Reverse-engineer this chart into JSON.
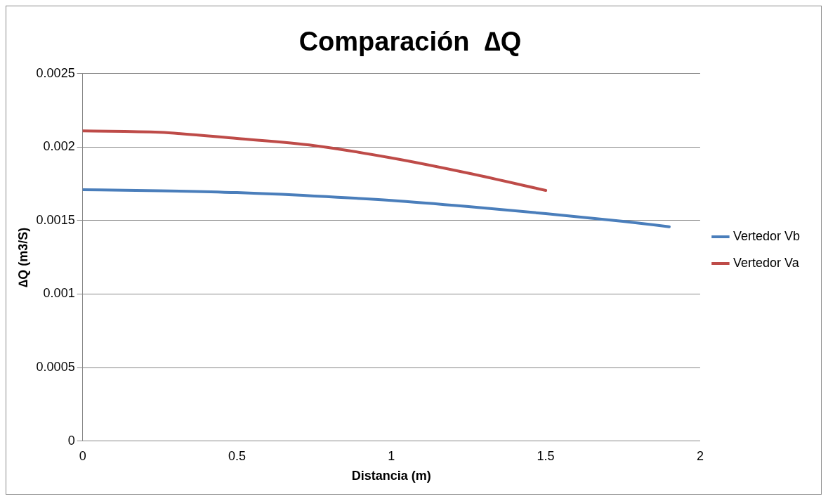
{
  "chart_data": {
    "type": "line",
    "title": "Comparación  ∆Q",
    "xlabel": "Distancia (m)",
    "ylabel": "∆Q (m3/S)",
    "xlim": [
      0,
      2
    ],
    "xticks": [
      0,
      0.5,
      1,
      1.5,
      2
    ],
    "ylim": [
      0,
      0.0025
    ],
    "yticks": [
      0,
      0.0005,
      0.001,
      0.0015,
      0.002,
      0.0025
    ],
    "grid": "y",
    "legend": "right",
    "marker": "none",
    "line_style": "solid",
    "series": [
      {
        "name": "Vertedor Vb",
        "color": "#4a7ebb",
        "x": [
          0,
          0.25,
          0.5,
          0.75,
          1,
          1.25,
          1.5,
          1.75,
          1.9
        ],
        "values": [
          0.00171,
          0.001703,
          0.00169,
          0.001667,
          0.001637,
          0.001595,
          0.001547,
          0.001495,
          0.001458
        ]
      },
      {
        "name": "Vertedor Va",
        "color": "#be4b48",
        "x": [
          0,
          0.25,
          0.5,
          0.75,
          1,
          1.25,
          1.5
        ],
        "values": [
          0.00211,
          0.0021,
          0.002058,
          0.00201,
          0.001926,
          0.001822,
          0.001705
        ]
      }
    ]
  }
}
